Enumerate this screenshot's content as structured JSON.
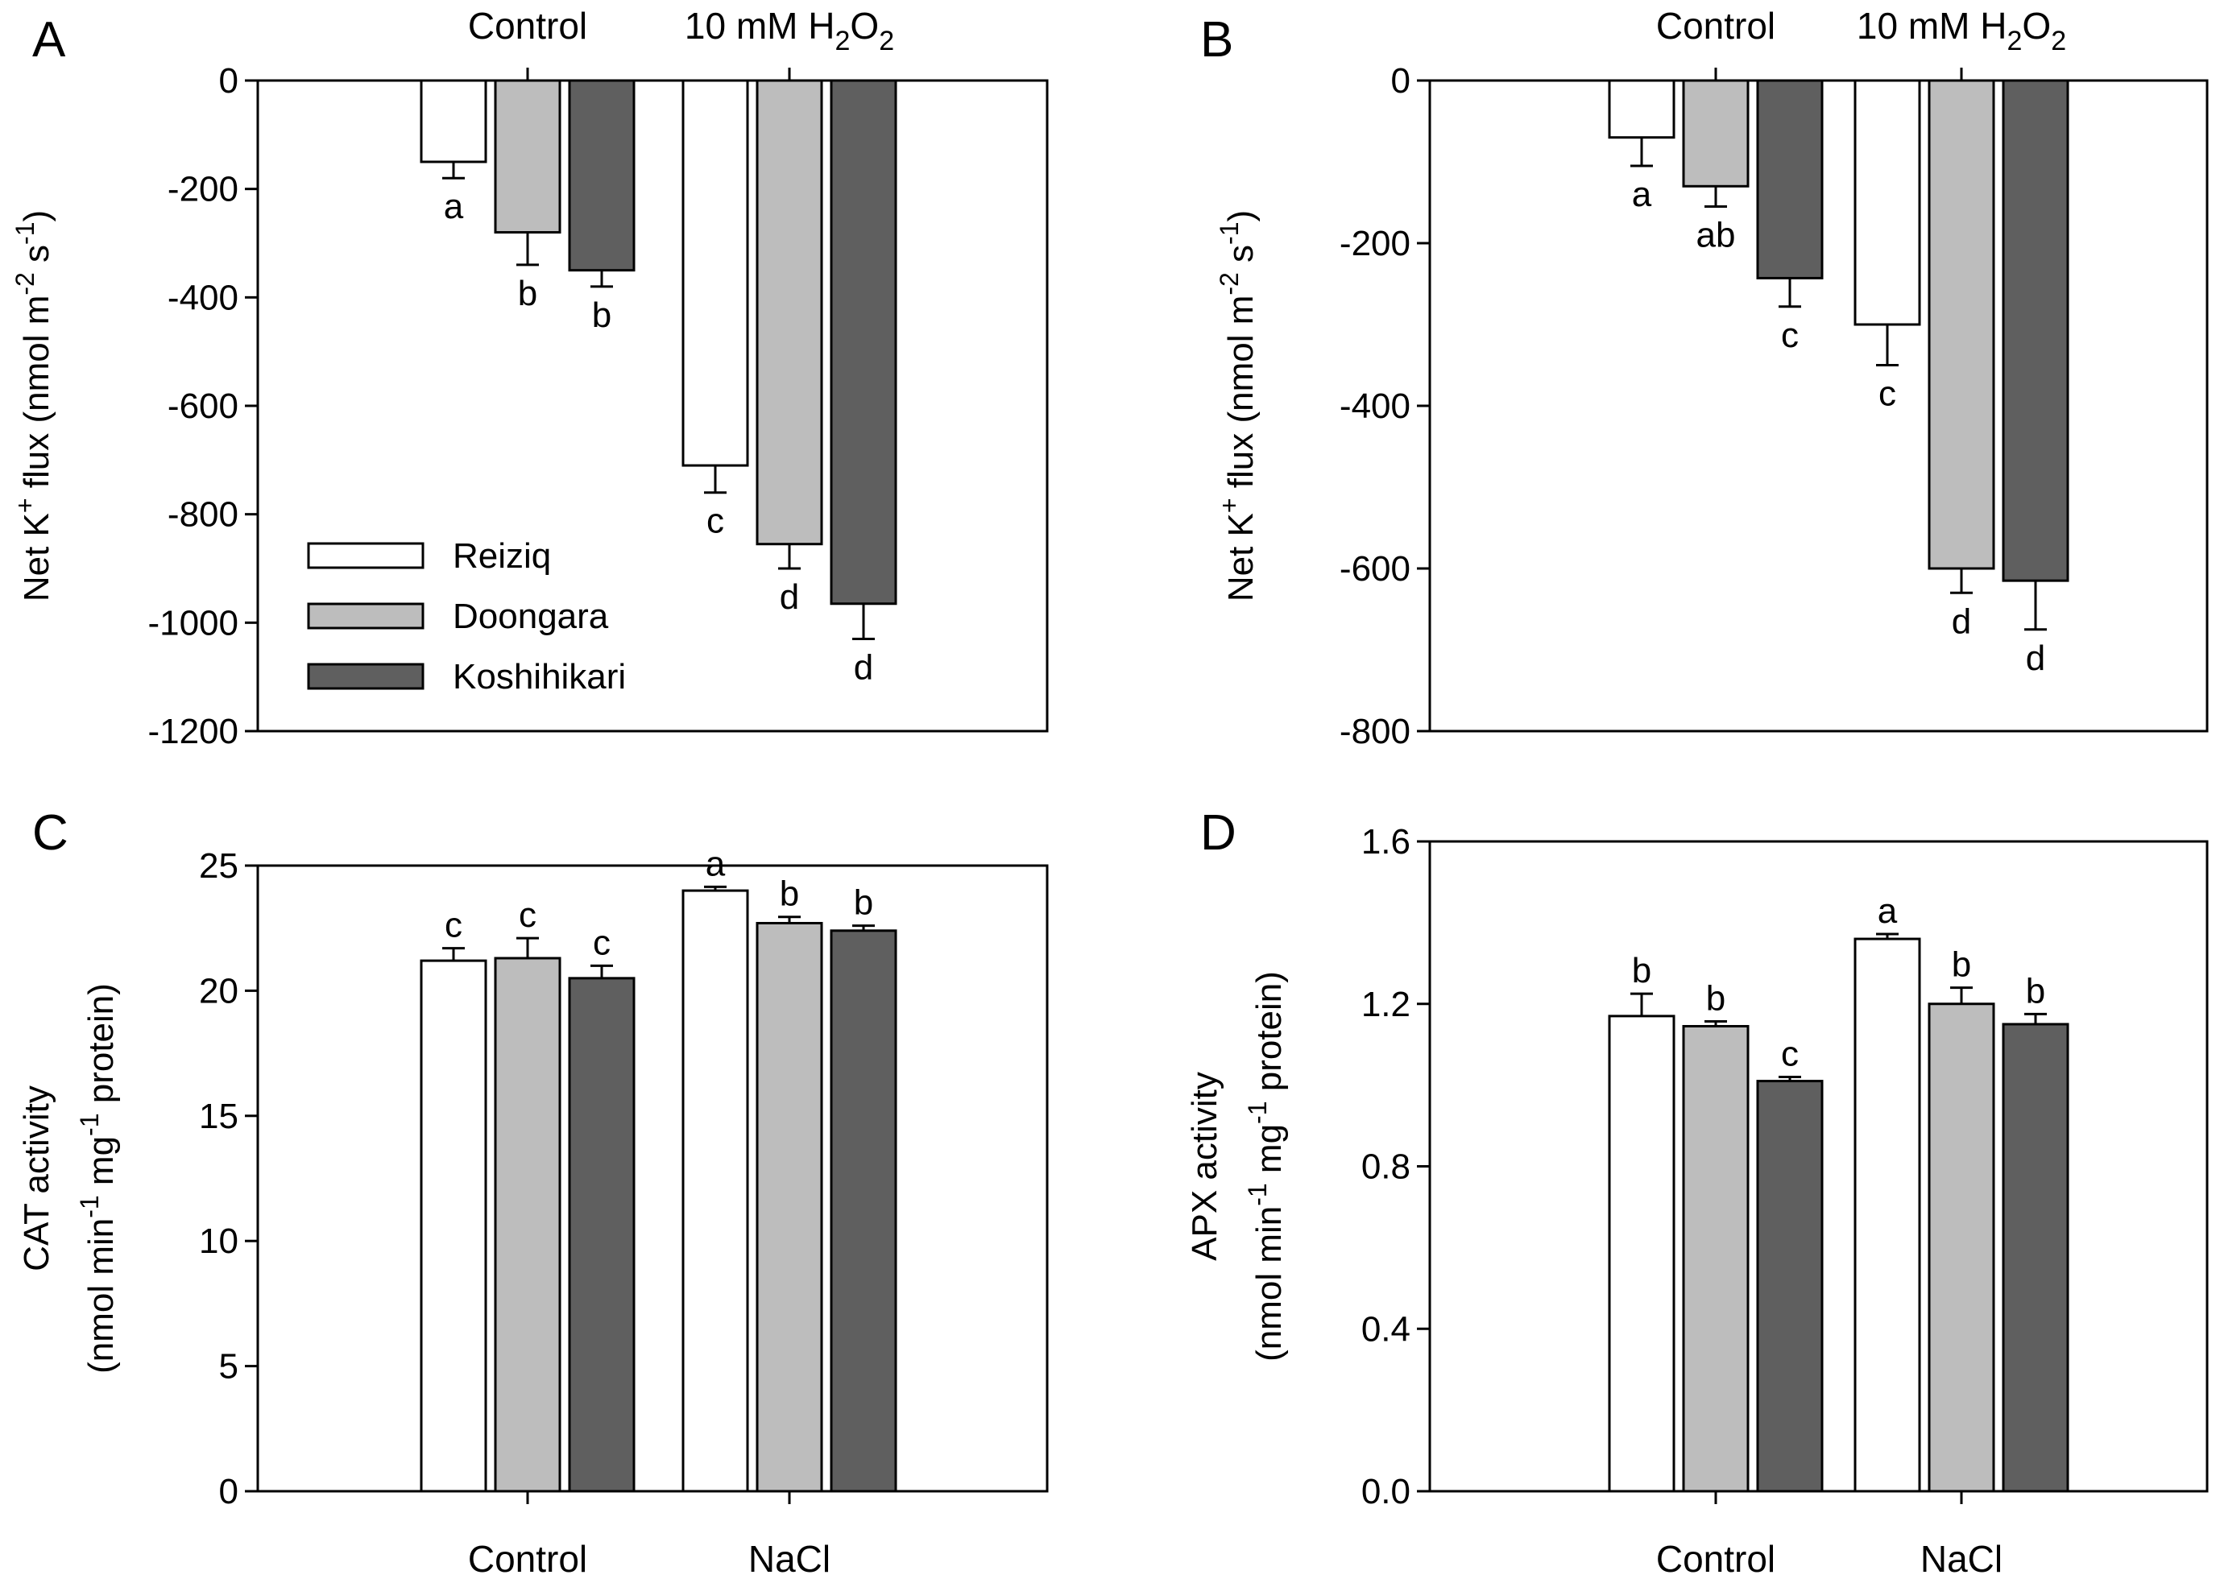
{
  "chart_data": [
    {
      "panel": "A",
      "type": "bar",
      "categories": [
        "Control",
        "10 mM H2O2"
      ],
      "category_parts": [
        {
          "text": "Control",
          "sub": ""
        },
        {
          "text": "10 mM H",
          "sub": "2",
          "mid": "O",
          "sub2": "2"
        }
      ],
      "series": [
        {
          "name": "Reiziq",
          "color": "#ffffff",
          "values": [
            -150,
            -710
          ],
          "errors": [
            30,
            50
          ],
          "letters": [
            "a",
            "c"
          ]
        },
        {
          "name": "Doongara",
          "color": "#bdbdbd",
          "values": [
            -280,
            -855
          ],
          "errors": [
            60,
            45
          ],
          "letters": [
            "b",
            "d"
          ]
        },
        {
          "name": "Koshihikari",
          "color": "#5f5f5f",
          "values": [
            -350,
            -965
          ],
          "errors": [
            30,
            65
          ],
          "letters": [
            "b",
            "d"
          ]
        }
      ],
      "ylim": [
        -1200,
        0
      ],
      "yticks": [
        0,
        -200,
        -400,
        -600,
        -800,
        -1000,
        -1200
      ],
      "ytick_labels": [
        "0",
        "-200",
        "-400",
        "-600",
        "-800",
        "-1000",
        "-1200"
      ],
      "ylabel": {
        "main": "Net K",
        "sup1": "+",
        "mid": " flux (nmol m",
        "sup2": "-2",
        "mid2": " s",
        "sup3": "-1",
        "end": ")"
      },
      "xlabel": "",
      "legend_position": "lower-left"
    },
    {
      "panel": "B",
      "type": "bar",
      "categories": [
        "Control",
        "10 mM H2O2"
      ],
      "category_parts": [
        {
          "text": "Control",
          "sub": ""
        },
        {
          "text": "10 mM H",
          "sub": "2",
          "mid": "O",
          "sub2": "2"
        }
      ],
      "series": [
        {
          "name": "Reiziq",
          "color": "#ffffff",
          "values": [
            -70,
            -300
          ],
          "errors": [
            35,
            50
          ],
          "letters": [
            "a",
            "c"
          ]
        },
        {
          "name": "Doongara",
          "color": "#bdbdbd",
          "values": [
            -130,
            -600
          ],
          "errors": [
            25,
            30
          ],
          "letters": [
            "ab",
            "d"
          ]
        },
        {
          "name": "Koshihikari",
          "color": "#5f5f5f",
          "values": [
            -243,
            -615
          ],
          "errors": [
            35,
            60
          ],
          "letters": [
            "c",
            "d"
          ]
        }
      ],
      "ylim": [
        -800,
        0
      ],
      "yticks": [
        0,
        -200,
        -400,
        -600,
        -800
      ],
      "ytick_labels": [
        "0",
        "-200",
        "-400",
        "-600",
        "-800"
      ],
      "ylabel": {
        "main": "Net K",
        "sup1": "+",
        "mid": " flux (nmol m",
        "sup2": "-2",
        "mid2": " s",
        "sup3": "-1",
        "end": ")"
      },
      "xlabel": ""
    },
    {
      "panel": "C",
      "type": "bar",
      "categories": [
        "Control",
        "NaCl"
      ],
      "series": [
        {
          "name": "Reiziq",
          "color": "#ffffff",
          "values": [
            21.2,
            24.0
          ],
          "errors": [
            0.5,
            0.15
          ],
          "letters": [
            "c",
            "a"
          ]
        },
        {
          "name": "Doongara",
          "color": "#bdbdbd",
          "values": [
            21.3,
            22.7
          ],
          "errors": [
            0.8,
            0.25
          ],
          "letters": [
            "c",
            "b"
          ]
        },
        {
          "name": "Koshihikari",
          "color": "#5f5f5f",
          "values": [
            20.5,
            22.4
          ],
          "errors": [
            0.5,
            0.2
          ],
          "letters": [
            "c",
            "b"
          ]
        }
      ],
      "ylim": [
        0,
        25
      ],
      "yticks": [
        0,
        5,
        10,
        15,
        20,
        25
      ],
      "ytick_labels": [
        "0",
        "5",
        "10",
        "15",
        "20",
        "25"
      ],
      "ylabel": {
        "line1": "CAT activity",
        "line2a": "(nmol min",
        "sup1": "-1",
        "line2b": " mg",
        "sup2": "-1",
        "line2c": " protein)"
      },
      "xlabel": ""
    },
    {
      "panel": "D",
      "type": "bar",
      "categories": [
        "Control",
        "NaCl"
      ],
      "series": [
        {
          "name": "Reiziq",
          "color": "#ffffff",
          "values": [
            1.17,
            1.36
          ],
          "errors": [
            0.055,
            0.012
          ],
          "letters": [
            "b",
            "a"
          ]
        },
        {
          "name": "Doongara",
          "color": "#bdbdbd",
          "values": [
            1.145,
            1.2
          ],
          "errors": [
            0.012,
            0.04
          ],
          "letters": [
            "b",
            "b"
          ]
        },
        {
          "name": "Koshihikari",
          "color": "#5f5f5f",
          "values": [
            1.01,
            1.15
          ],
          "errors": [
            0.01,
            0.025
          ],
          "letters": [
            "c",
            "b"
          ]
        }
      ],
      "ylim": [
        0,
        1.6
      ],
      "yticks": [
        0,
        0.4,
        0.8,
        1.2,
        1.6
      ],
      "ytick_labels": [
        "0.0",
        "0.4",
        "0.8",
        "1.2",
        "1.6"
      ],
      "ylabel": {
        "line1": "APX activity",
        "line2a": "(nmol min",
        "sup1": "-1",
        "line2b": " mg",
        "sup2": "-1",
        "line2c": " protein)"
      },
      "xlabel": ""
    }
  ],
  "legend": {
    "items": [
      {
        "label": "Reiziq",
        "color": "#ffffff"
      },
      {
        "label": "Doongara",
        "color": "#bdbdbd"
      },
      {
        "label": "Koshihikari",
        "color": "#5f5f5f"
      }
    ]
  }
}
